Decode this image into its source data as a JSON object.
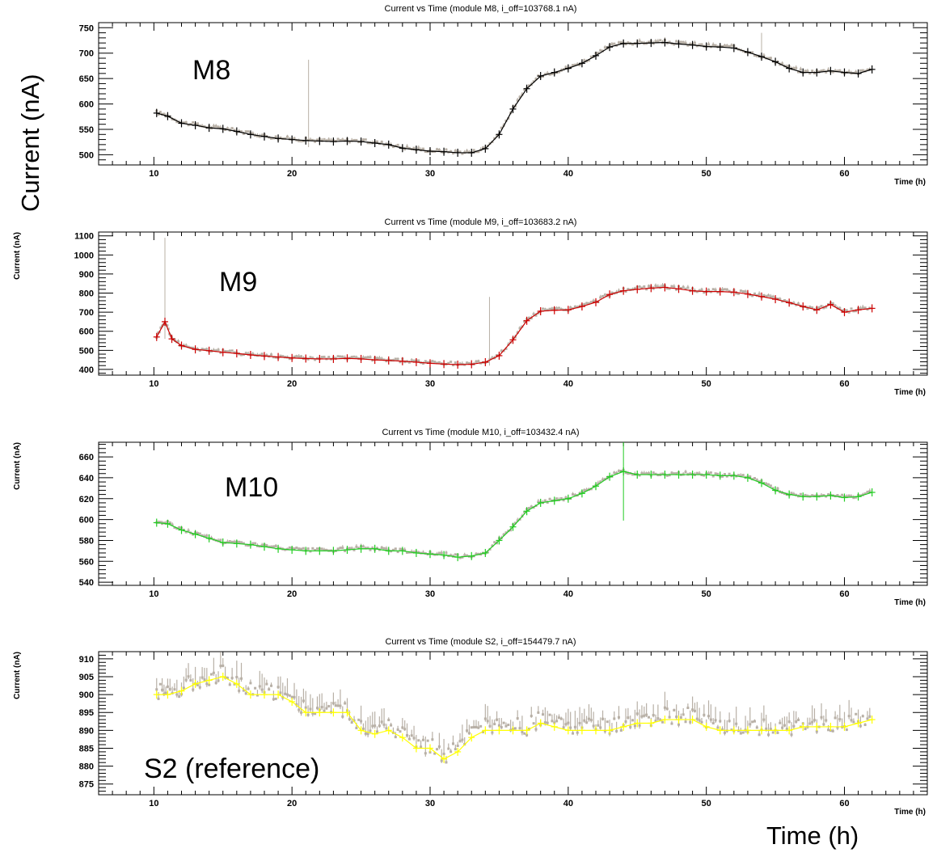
{
  "figure": {
    "ylabel": "Current (nA)",
    "xlabel": "Time (h)"
  },
  "chart_data": [
    {
      "type": "line",
      "title": "Current vs Time (module M8, i_off=103768.1 nA)",
      "annotation": "M8",
      "xlabel": "Time (h)",
      "ylabel": "",
      "xlim": [
        6,
        66
      ],
      "ylim": [
        480,
        760
      ],
      "xticks": [
        10,
        20,
        30,
        40,
        50,
        60
      ],
      "yticks": [
        500,
        550,
        600,
        650,
        700,
        750
      ],
      "colors": {
        "series": "#000000",
        "raw": "#b8b0a6"
      },
      "spikes": [
        {
          "x": 21.2,
          "ylow": 515,
          "yhigh": 687
        },
        {
          "x": 54,
          "ylow": 690,
          "yhigh": 740
        }
      ],
      "series": [
        {
          "x": [
            10.2,
            11,
            12,
            13,
            14,
            15,
            16,
            17,
            18,
            19,
            20,
            21,
            22,
            23,
            24,
            25,
            26,
            27,
            28,
            29,
            30,
            31,
            32,
            33,
            34,
            35,
            36,
            37,
            38,
            39,
            40,
            41,
            42,
            43,
            44,
            45,
            46,
            47,
            48,
            49,
            50,
            51,
            52,
            53,
            54,
            55,
            56,
            57,
            58,
            59,
            60,
            61,
            62
          ],
          "values": [
            582,
            576,
            562,
            558,
            553,
            551,
            546,
            540,
            536,
            532,
            530,
            528,
            527,
            526,
            527,
            526,
            523,
            520,
            513,
            510,
            507,
            506,
            504,
            504,
            512,
            540,
            590,
            630,
            655,
            662,
            670,
            680,
            695,
            712,
            719,
            719,
            720,
            721,
            718,
            716,
            713,
            712,
            710,
            702,
            693,
            683,
            670,
            662,
            662,
            665,
            662,
            660,
            668
          ]
        }
      ]
    },
    {
      "type": "line",
      "title": "Current vs Time (module M9, i_off=103683.2 nA)",
      "annotation": "M9",
      "xlabel": "Time (h)",
      "ylabel": "Current (nA)",
      "xlim": [
        6,
        66
      ],
      "ylim": [
        370,
        1120
      ],
      "xticks": [
        10,
        20,
        30,
        40,
        50,
        60
      ],
      "yticks": [
        400,
        500,
        600,
        700,
        800,
        900,
        1000,
        1100
      ],
      "colors": {
        "series": "#cc0000",
        "raw": "#b8b0a6"
      },
      "spikes": [
        {
          "x": 10.8,
          "ylow": 560,
          "yhigh": 1090
        },
        {
          "x": 34.3,
          "ylow": 420,
          "yhigh": 780
        }
      ],
      "series": [
        {
          "x": [
            10.2,
            10.8,
            11.3,
            12,
            13,
            14,
            15,
            16,
            17,
            18,
            19,
            20,
            21,
            22,
            23,
            24,
            25,
            26,
            27,
            28,
            29,
            30,
            31,
            32,
            33,
            34,
            35,
            36,
            37,
            38,
            39,
            40,
            41,
            42,
            43,
            44,
            45,
            46,
            47,
            48,
            49,
            50,
            51,
            52,
            53,
            54,
            55,
            56,
            57,
            58,
            59,
            60,
            61,
            62
          ],
          "values": [
            570,
            650,
            560,
            525,
            505,
            498,
            490,
            484,
            476,
            470,
            465,
            460,
            457,
            455,
            455,
            458,
            455,
            450,
            447,
            443,
            438,
            432,
            428,
            425,
            427,
            438,
            472,
            555,
            655,
            705,
            710,
            712,
            730,
            752,
            793,
            812,
            820,
            826,
            830,
            822,
            812,
            808,
            808,
            805,
            795,
            782,
            768,
            750,
            730,
            712,
            740,
            700,
            712,
            720
          ]
        }
      ]
    },
    {
      "type": "line",
      "title": "Current vs Time (module M10, i_off=103432.4 nA)",
      "annotation": "M10",
      "xlabel": "Time (h)",
      "ylabel": "Current (nA)",
      "xlim": [
        6,
        66
      ],
      "ylim": [
        537,
        674
      ],
      "xticks": [
        10,
        20,
        30,
        40,
        50,
        60
      ],
      "yticks": [
        540,
        560,
        580,
        600,
        620,
        640,
        660
      ],
      "colors": {
        "series": "#22cc22",
        "raw": "#b8b0a6"
      },
      "spikes": [
        {
          "x": 44,
          "ylow": 599,
          "yhigh": 674
        }
      ],
      "series": [
        {
          "x": [
            10.2,
            11,
            12,
            13,
            14,
            15,
            16,
            17,
            18,
            19,
            20,
            21,
            22,
            23,
            24,
            25,
            26,
            27,
            28,
            29,
            30,
            31,
            32,
            33,
            34,
            35,
            36,
            37,
            38,
            39,
            40,
            41,
            42,
            43,
            44,
            45,
            46,
            47,
            48,
            49,
            50,
            51,
            52,
            53,
            54,
            55,
            56,
            57,
            58,
            59,
            60,
            61,
            62
          ],
          "values": [
            597,
            596,
            590,
            586,
            582,
            578,
            577,
            576,
            574,
            572,
            571,
            570,
            570,
            570,
            571,
            572,
            572,
            570,
            570,
            568,
            567,
            566,
            564,
            565,
            568,
            580,
            593,
            608,
            616,
            618,
            620,
            625,
            632,
            641,
            646,
            643,
            643,
            643,
            643,
            643,
            643,
            642,
            642,
            640,
            635,
            628,
            624,
            622,
            622,
            623,
            621,
            622,
            626
          ]
        }
      ]
    },
    {
      "type": "line",
      "title": "Current vs Time (module S2, i_off=154479.7 nA)",
      "annotation": "S2 (reference)",
      "xlabel": "Time (h)",
      "ylabel": "Current (nA)",
      "xlim": [
        6,
        66
      ],
      "ylim": [
        872,
        912
      ],
      "xticks": [
        10,
        20,
        30,
        40,
        50,
        60
      ],
      "yticks": [
        875,
        880,
        885,
        890,
        895,
        900,
        905,
        910
      ],
      "colors": {
        "series": "#ffff00",
        "raw": "#b8b0a6"
      },
      "spikes": [],
      "series": [
        {
          "x": [
            10.2,
            11,
            12,
            13,
            14,
            15,
            16,
            17,
            18,
            19,
            20,
            21,
            22,
            23,
            24,
            25,
            26,
            27,
            28,
            29,
            30,
            31,
            32,
            33,
            34,
            35,
            36,
            37,
            38,
            39,
            40,
            41,
            42,
            43,
            44,
            45,
            46,
            47,
            48,
            49,
            50,
            51,
            52,
            53,
            54,
            55,
            56,
            57,
            58,
            59,
            60,
            61,
            62
          ],
          "values": [
            900,
            900,
            901,
            903,
            904,
            905,
            903,
            900,
            900,
            900,
            898,
            895,
            895,
            895,
            895,
            890,
            889,
            890,
            888,
            885,
            885,
            882,
            884,
            888,
            890,
            890,
            890,
            890,
            892,
            891,
            890,
            890,
            890,
            890,
            891,
            892,
            892,
            893,
            893,
            893,
            891,
            890,
            890,
            890,
            890,
            890,
            890,
            891,
            891,
            891,
            891,
            892,
            893
          ]
        }
      ]
    }
  ]
}
